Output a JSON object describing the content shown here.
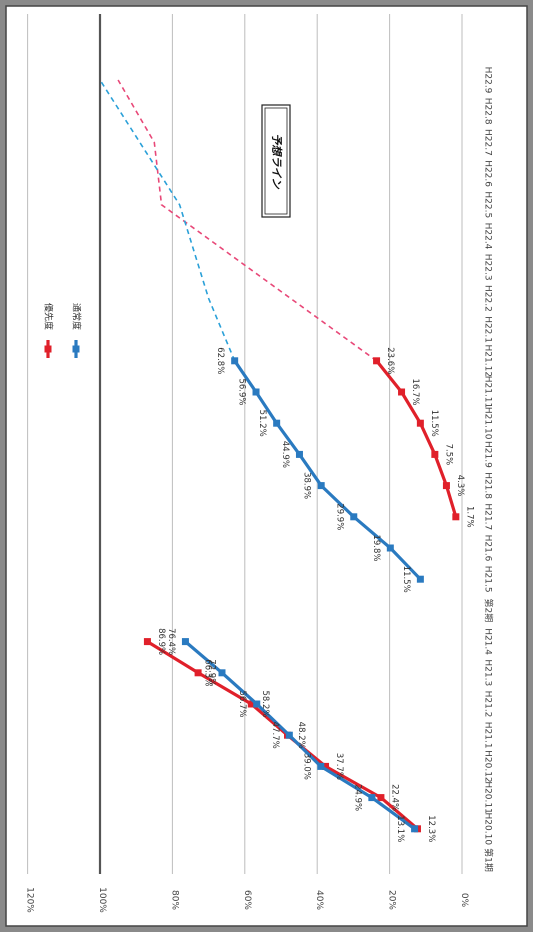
{
  "chart_data": {
    "type": "line",
    "orientation": "rotated-90-clockwise",
    "ylim": [
      0,
      120
    ],
    "yticks": [
      "0%",
      "20%",
      "40%",
      "60%",
      "80%",
      "100%",
      "120%"
    ],
    "categories": [
      "第1期",
      "H20.10",
      "H20.11",
      "H20.12",
      "H21.1",
      "H21.2",
      "H21.3",
      "H21.4",
      "第2期",
      "H21.5",
      "H21.6",
      "H21.7",
      "H21.8",
      "H21.9",
      "H21.10",
      "H21.11",
      "H21.12",
      "H22.1",
      "H22.2",
      "H22.3",
      "H22.4",
      "H22.5",
      "H22.6",
      "H22.7",
      "H22.8",
      "H22.9"
    ],
    "series": [
      {
        "name": "優先度",
        "color": "#e0202a",
        "points": [
          {
            "cat": "H20.10",
            "value": 12.3,
            "label": "12.3%"
          },
          {
            "cat": "H20.11",
            "value": 22.4,
            "label": "22.4%"
          },
          {
            "cat": "H20.12",
            "value": 37.7,
            "label": "37.7%"
          },
          {
            "cat": "H21.1",
            "value": 48.2,
            "label": "48.2%"
          },
          {
            "cat": "H21.2",
            "value": 58.2,
            "label": "58.2%"
          },
          {
            "cat": "H21.3",
            "value": 72.9,
            "label": "72.9%"
          },
          {
            "cat": "H21.4",
            "value": 86.9,
            "label": "86.9%"
          },
          {
            "cat": "H21.7",
            "value": 1.7,
            "label": "1.7%"
          },
          {
            "cat": "H21.8",
            "value": 4.3,
            "label": "4.3%"
          },
          {
            "cat": "H21.9",
            "value": 7.5,
            "label": "7.5%"
          },
          {
            "cat": "H21.10",
            "value": 11.5,
            "label": "11.5%"
          },
          {
            "cat": "H21.11",
            "value": 16.7,
            "label": "16.7%"
          },
          {
            "cat": "H21.12",
            "value": 23.6,
            "label": "23.6%"
          }
        ],
        "forecast": [
          {
            "cat": "H21.12",
            "value": 23.6
          },
          {
            "cat": "H22.5",
            "value": 83
          },
          {
            "cat": "H22.7",
            "value": 85
          },
          {
            "cat": "H22.9",
            "value": 95
          }
        ]
      },
      {
        "name": "通常度",
        "color": "#2a7ac0",
        "points": [
          {
            "cat": "H20.10",
            "value": 13.1,
            "label": "13.1%"
          },
          {
            "cat": "H20.11",
            "value": 24.9,
            "label": "24.9%"
          },
          {
            "cat": "H20.12",
            "value": 39.0,
            "label": "39.0%"
          },
          {
            "cat": "H21.1",
            "value": 47.7,
            "label": "47.7%"
          },
          {
            "cat": "H21.2",
            "value": 56.7,
            "label": "56.7%"
          },
          {
            "cat": "H21.3",
            "value": 66.3,
            "label": "66.3%"
          },
          {
            "cat": "H21.4",
            "value": 76.4,
            "label": "76.4%"
          },
          {
            "cat": "H21.5",
            "value": 11.5,
            "label": "11.5%"
          },
          {
            "cat": "H21.6",
            "value": 19.8,
            "label": "19.8%"
          },
          {
            "cat": "H21.7",
            "value": 29.9,
            "label": "29.9%"
          },
          {
            "cat": "H21.8",
            "value": 38.9,
            "label": "38.9%"
          },
          {
            "cat": "H21.9",
            "value": 44.9,
            "label": "44.9%"
          },
          {
            "cat": "H21.10",
            "value": 51.2,
            "label": "51.2%"
          },
          {
            "cat": "H21.11",
            "value": 56.9,
            "label": "56.9%"
          },
          {
            "cat": "H21.12",
            "value": 62.8,
            "label": "62.8%"
          }
        ],
        "forecast": [
          {
            "cat": "H21.12",
            "value": 62.8
          },
          {
            "cat": "H22.2",
            "value": 70
          },
          {
            "cat": "H22.5",
            "value": 78
          },
          {
            "cat": "H22.9",
            "value": 100
          }
        ]
      }
    ],
    "reference_line": 100,
    "legend": {
      "placement": "top",
      "entries": [
        "優先度",
        "通常度"
      ]
    },
    "annotation": "予想ライン",
    "grid": true
  }
}
